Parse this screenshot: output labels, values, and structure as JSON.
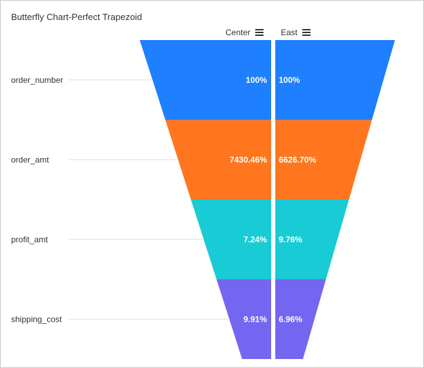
{
  "title": "Butterfly Chart-Perfect Trapezoid",
  "series_headers": [
    {
      "label": "Center",
      "icon": "menu-icon"
    },
    {
      "label": "East",
      "icon": "menu-icon"
    }
  ],
  "chart_data": {
    "type": "funnel-butterfly",
    "title": "Butterfly Chart-Perfect Trapezoid",
    "categories": [
      "order_number",
      "order_amt",
      "profit_amt",
      "shipping_cost"
    ],
    "series": [
      {
        "name": "Center",
        "labels": [
          "100%",
          "7430.46%",
          "7.24%",
          "9.91%"
        ],
        "values": [
          100,
          7430.46,
          7.24,
          9.91
        ]
      },
      {
        "name": "East",
        "labels": [
          "100%",
          "6626.70%",
          "9.76%",
          "6.96%"
        ],
        "values": [
          100,
          6626.7,
          9.76,
          6.96
        ]
      }
    ],
    "colors": [
      "#1e7fff",
      "#ff761e",
      "#19cbd5",
      "#7566f2"
    ]
  }
}
